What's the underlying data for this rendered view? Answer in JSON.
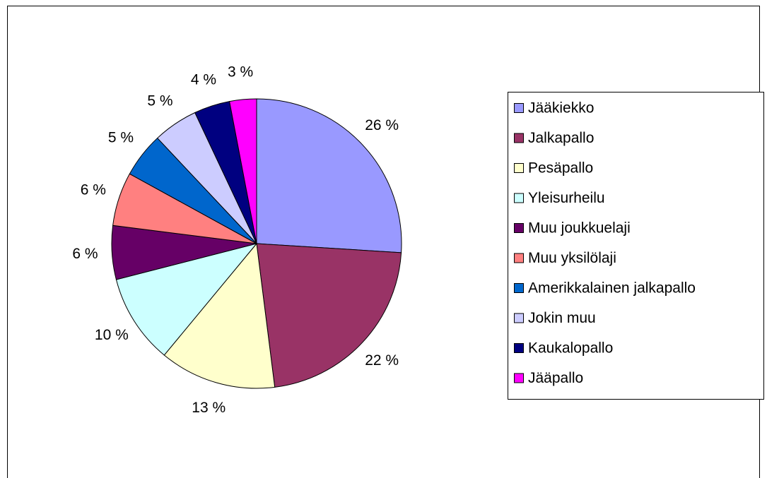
{
  "chart_data": {
    "type": "pie",
    "categories": [
      "Jääkiekko",
      "Jalkapallo",
      "Pesäpallo",
      "Yleisurheilu",
      "Muu joukkuelaji",
      "Muu yksilölaji",
      "Amerikkalainen jalkapallo",
      "Jokin muu",
      "Kaukalopallo",
      "Jääpallo"
    ],
    "values": [
      26,
      22,
      13,
      10,
      6,
      6,
      5,
      5,
      4,
      3
    ],
    "value_labels": [
      "26 %",
      "22 %",
      "13 %",
      "10 %",
      "6 %",
      "6 %",
      "5 %",
      "5 %",
      "4 %",
      "3 %"
    ],
    "colors": [
      "#9999FF",
      "#993366",
      "#FFFFCC",
      "#CCFFFF",
      "#660066",
      "#FF8080",
      "#0066CC",
      "#CCCCFF",
      "#000080",
      "#FF00FF"
    ],
    "legend": "right"
  }
}
